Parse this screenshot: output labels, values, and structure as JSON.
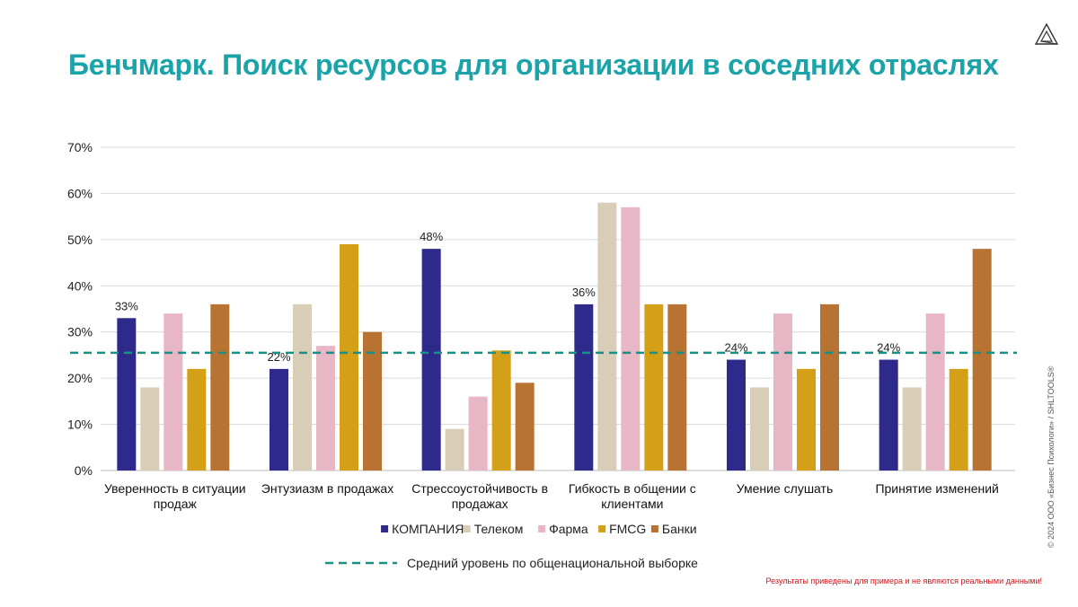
{
  "slide": {
    "title": "Бенчмарк. Поиск ресурсов для организации в соседних отраслях",
    "copyright": "© 2024 ООО «Бизнес Психологи» / SHLTOOLS®",
    "disclaimer": "Результаты приведены для примера и не являются реальными данными!",
    "logo_icon": "triangle-logo-icon"
  },
  "chart_data": {
    "type": "bar",
    "categories": [
      [
        "Уверенность в ситуации",
        "продаж"
      ],
      [
        "Энтузиазм в продажах"
      ],
      [
        "Стрессоустойчивость в",
        "продажах"
      ],
      [
        "Гибкость в общении с",
        "клиентами"
      ],
      [
        "Умение слушать"
      ],
      [
        "Принятие изменений"
      ]
    ],
    "series": [
      {
        "name": "КОМПАНИЯ",
        "color": "#2e2a8c",
        "values": [
          33,
          22,
          48,
          36,
          24,
          24
        ],
        "labels": [
          "33%",
          "22%",
          "48%",
          "36%",
          "24%",
          "24%"
        ]
      },
      {
        "name": "Телеком",
        "color": "#d8cdb6",
        "values": [
          18,
          36,
          9,
          58,
          18,
          18
        ]
      },
      {
        "name": "Фарма",
        "color": "#e8b7c6",
        "values": [
          34,
          27,
          16,
          57,
          34,
          34
        ]
      },
      {
        "name": "FMCG",
        "color": "#d4a017",
        "values": [
          22,
          49,
          26,
          36,
          22,
          22
        ]
      },
      {
        "name": "Банки",
        "color": "#b87332",
        "values": [
          36,
          30,
          19,
          36,
          36,
          48
        ]
      }
    ],
    "reference_line": {
      "name": "Средний уровень по общенациональной выборке",
      "value": 25.5,
      "color": "#1a8f85",
      "style": "dashed"
    },
    "ylim": [
      0,
      70
    ],
    "yticks": [
      "0%",
      "10%",
      "20%",
      "30%",
      "40%",
      "50%",
      "60%",
      "70%"
    ],
    "grid": true,
    "legend_position": "bottom"
  }
}
